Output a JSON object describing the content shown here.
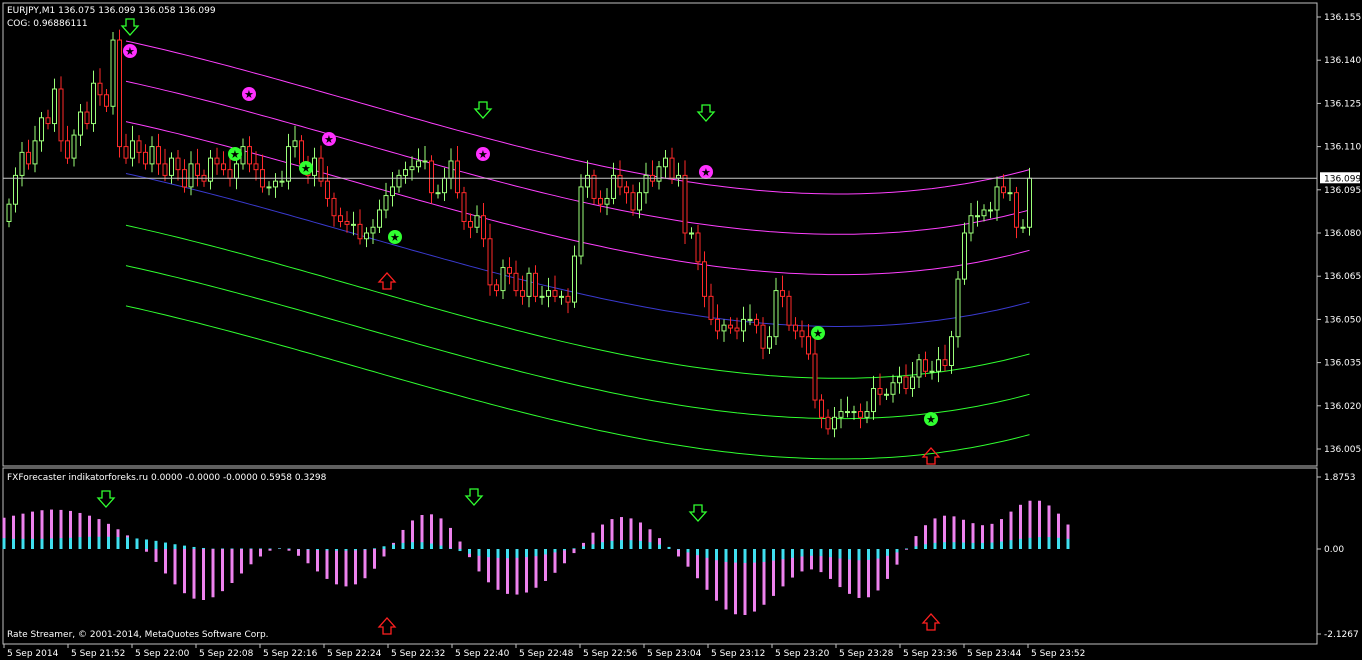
{
  "main_chart": {
    "header_symbol": "EURJPY,M1  136.075 136.099 136.058 136.099",
    "header_indicator": "COG: 0.96886111",
    "current_price_label": "136.099",
    "current_price": 136.099,
    "price_ticks": [
      "136.155",
      "136.140",
      "136.125",
      "136.110",
      "136.095",
      "136.080",
      "136.065",
      "136.050",
      "136.035",
      "136.020",
      "136.005"
    ],
    "colors": {
      "bull": "#9cff7a",
      "bear": "#ff2a2a",
      "upper_bands": "#ff40ff",
      "lower_bands": "#30ff30",
      "center": "#3a3acf",
      "price_line": "#c8c8c8"
    }
  },
  "sub_chart": {
    "header": "FXForecaster indikatorforeks.ru 0.0000 -0.0000 -0.0000 0.5958 0.3298",
    "ticks": [
      "1.8753",
      "0.00",
      "-2.1267"
    ],
    "colors": {
      "pink": "#ee82ee",
      "cyan": "#40e0f0"
    }
  },
  "footer": "Rate Streamer, © 2001-2014, MetaQuotes Software Corp.",
  "time_ticks": [
    "5 Sep 2014",
    "5 Sep 21:52",
    "5 Sep 22:00",
    "5 Sep 22:08",
    "5 Sep 22:16",
    "5 Sep 22:24",
    "5 Sep 22:32",
    "5 Sep 22:40",
    "5 Sep 22:48",
    "5 Sep 22:56",
    "5 Sep 23:04",
    "5 Sep 23:12",
    "5 Sep 23:20",
    "5 Sep 23:28",
    "5 Sep 23:36",
    "5 Sep 23:44",
    "5 Sep 23:52"
  ],
  "chart_data": [
    {
      "type": "candlestick",
      "title": "EURJPY,M1",
      "ylim": [
        136.0,
        136.16
      ],
      "series": [
        {
          "values": [
            136.09,
            136.1,
            136.108,
            136.104,
            136.112,
            136.12,
            136.118,
            136.13,
            136.112,
            136.106,
            136.114,
            136.122,
            136.118,
            136.132,
            136.128,
            136.124,
            136.147,
            136.11,
            136.106,
            136.112,
            136.108,
            136.104,
            136.11,
            136.104,
            136.1,
            136.106,
            136.102,
            136.096,
            136.104,
            136.1,
            136.098,
            136.106,
            136.104,
            136.102,
            136.099,
            136.104,
            136.11,
            136.104,
            136.102,
            136.096,
            136.096,
            136.098,
            136.098,
            136.11,
            136.112,
            136.104,
            136.1,
            136.106,
            136.098,
            136.092,
            136.086,
            136.084,
            136.083,
            136.083,
            136.078,
            136.08,
            136.082,
            136.088,
            136.093,
            136.096,
            136.1,
            136.102,
            136.103,
            136.105,
            136.105,
            136.094,
            136.094,
            136.099,
            136.105,
            136.094,
            136.084,
            136.082,
            136.086,
            136.078,
            136.062,
            136.06,
            136.068,
            136.066,
            136.06,
            136.058,
            136.066,
            136.058,
            136.058,
            136.06,
            136.058,
            136.058,
            136.056,
            136.072,
            136.096,
            136.1,
            136.092,
            136.09,
            136.092,
            136.1,
            136.096,
            136.094,
            136.088,
            136.094,
            136.1,
            136.098,
            136.103,
            136.106,
            136.099,
            136.1,
            136.08,
            136.08,
            136.07,
            136.058,
            136.05,
            136.046,
            136.048,
            136.047,
            136.046,
            136.05,
            136.05,
            136.048,
            136.04,
            136.044,
            136.06,
            136.058,
            136.048,
            136.046,
            136.044,
            136.038,
            136.022,
            136.016,
            136.012,
            136.016,
            136.018,
            136.018,
            136.018,
            136.016,
            136.018,
            136.026,
            136.024,
            136.024,
            136.028,
            136.03,
            136.026,
            136.03,
            136.036,
            136.032,
            136.032,
            136.036,
            136.034,
            136.044,
            136.064,
            136.08,
            136.086,
            136.086,
            136.088,
            136.088,
            136.096,
            136.094,
            136.094,
            136.082,
            136.082,
            136.099
          ]
        }
      ]
    },
    {
      "type": "bar",
      "title": "FXForecaster",
      "ylim": [
        -2.1267,
        1.8753
      ],
      "series": [
        {
          "values": [
            0.92,
            0.98,
            1.04,
            1.1,
            1.14,
            1.16,
            1.15,
            1.12,
            1.06,
            0.98,
            0.88,
            0.74,
            0.58,
            0.4,
            0.18,
            -0.08,
            -0.38,
            -0.72,
            -1.04,
            -1.3,
            -1.46,
            -1.5,
            -1.42,
            -1.24,
            -1.0,
            -0.72,
            -0.45,
            -0.22,
            -0.05,
            0.02,
            -0.05,
            -0.2,
            -0.42,
            -0.66,
            -0.88,
            -1.04,
            -1.1,
            -1.04,
            -0.86,
            -0.58,
            -0.22,
            0.18,
            0.56,
            0.84,
            1.0,
            1.02,
            0.9,
            0.62,
            0.22,
            -0.24,
            -0.66,
            -0.98,
            -1.2,
            -1.32,
            -1.34,
            -1.28,
            -1.14,
            -0.94,
            -0.7,
            -0.42,
            -0.12,
            0.18,
            0.48,
            0.72,
            0.88,
            0.94,
            0.9,
            0.78,
            0.58,
            0.32,
            0.06,
            -0.22,
            -0.52,
            -0.86,
            -1.2,
            -1.52,
            -1.78,
            -1.92,
            -1.94,
            -1.84,
            -1.64,
            -1.38,
            -1.1,
            -0.84,
            -0.66,
            -0.6,
            -0.68,
            -0.88,
            -1.12,
            -1.32,
            -1.44,
            -1.42,
            -1.22,
            -0.88,
            -0.46,
            -0.02,
            0.38,
            0.7,
            0.9,
            0.98,
            0.96,
            0.86,
            0.76,
            0.7,
            0.74,
            0.88,
            1.1,
            1.3,
            1.42,
            1.42,
            1.28,
            1.04,
            0.72
          ]
        },
        {
          "values": [
            0.32,
            0.3,
            0.3,
            0.3,
            0.3,
            0.31,
            0.32,
            0.33,
            0.35,
            0.36,
            0.36,
            0.36,
            0.35,
            0.34,
            0.31,
            0.28,
            0.24,
            0.19,
            0.14,
            0.1,
            0.06,
            0.03,
            0.01,
            0.0,
            0.0,
            0.0,
            0.0,
            0.0,
            0.0,
            0.0,
            0.0,
            -0.01,
            -0.02,
            -0.03,
            -0.04,
            -0.05,
            -0.05,
            -0.04,
            -0.02,
            0.02,
            0.08,
            0.13,
            0.18,
            0.2,
            0.2,
            0.16,
            0.1,
            0.02,
            -0.06,
            -0.14,
            -0.2,
            -0.24,
            -0.26,
            -0.27,
            -0.26,
            -0.24,
            -0.21,
            -0.16,
            -0.1,
            -0.04,
            0.02,
            0.08,
            0.14,
            0.2,
            0.24,
            0.26,
            0.26,
            0.24,
            0.2,
            0.13,
            0.06,
            -0.02,
            -0.1,
            -0.18,
            -0.26,
            -0.33,
            -0.38,
            -0.4,
            -0.41,
            -0.4,
            -0.38,
            -0.34,
            -0.3,
            -0.26,
            -0.22,
            -0.2,
            -0.21,
            -0.24,
            -0.28,
            -0.31,
            -0.33,
            -0.32,
            -0.28,
            -0.2,
            -0.1,
            0.0,
            0.08,
            0.14,
            0.18,
            0.2,
            0.2,
            0.19,
            0.18,
            0.18,
            0.19,
            0.22,
            0.26,
            0.3,
            0.33,
            0.35,
            0.35,
            0.33,
            0.3
          ]
        }
      ]
    }
  ]
}
